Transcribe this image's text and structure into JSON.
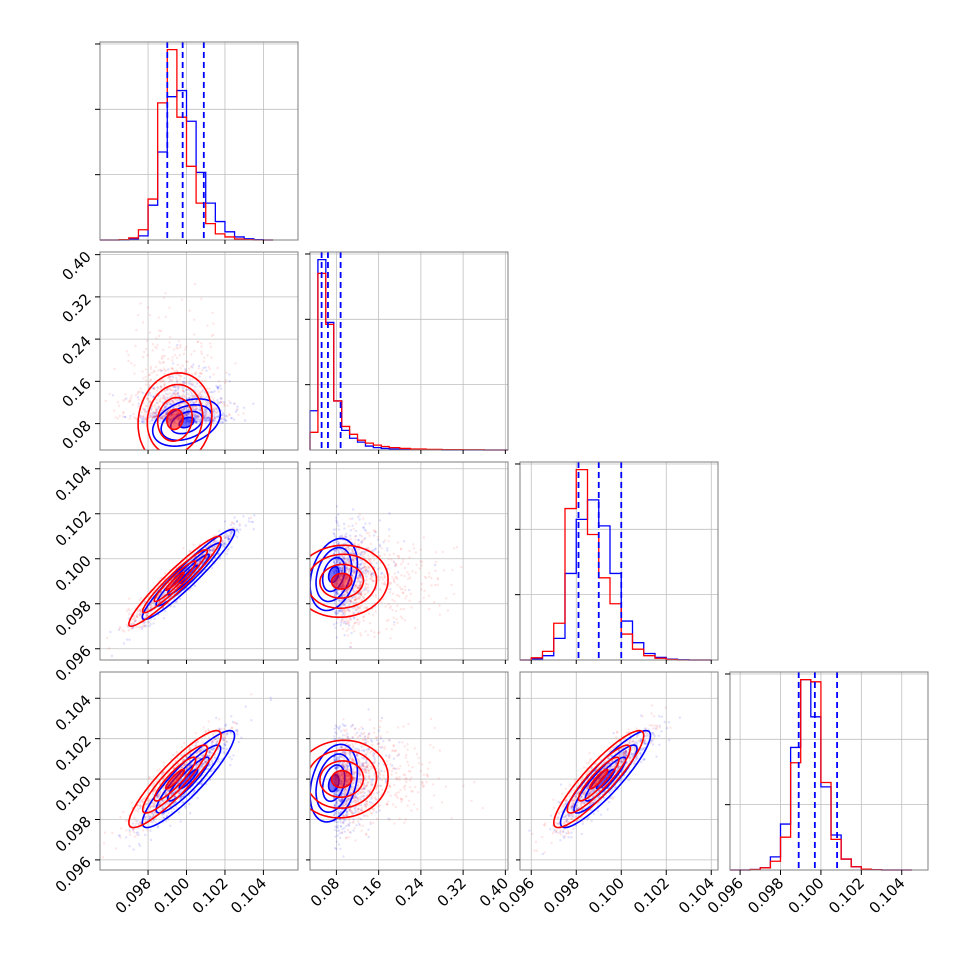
{
  "chart_data": {
    "type": "corner",
    "parameters": [
      "",
      "",
      "",
      ""
    ],
    "series": [
      {
        "name": "",
        "color": "#0000ff"
      },
      {
        "name": "",
        "color": "#ff0000"
      }
    ],
    "quantile_line_color": "#0000ff",
    "grid": true,
    "ranges": [
      [
        0.0955,
        0.1058
      ],
      [
        0.03,
        0.405
      ],
      [
        0.0955,
        0.1043
      ],
      [
        0.0955,
        0.1053
      ]
    ],
    "ticks": [
      {
        "values": [
          0.098,
          0.1,
          0.102,
          0.104
        ],
        "labels": [
          "0.098",
          "0.100",
          "0.102",
          "0.104"
        ]
      },
      {
        "values": [
          0.08,
          0.16,
          0.24,
          0.32,
          0.4
        ],
        "labels": [
          "0.08",
          "0.16",
          "0.24",
          "0.32",
          "0.40"
        ]
      },
      {
        "values": [
          0.096,
          0.098,
          0.1,
          0.102,
          0.104
        ],
        "labels": [
          "0.096",
          "0.098",
          "0.100",
          "0.102",
          "0.104"
        ]
      },
      {
        "values": [
          0.096,
          0.098,
          0.1,
          0.102,
          0.104
        ],
        "labels": [
          "0.096",
          "0.098",
          "0.100",
          "0.102",
          "0.104"
        ]
      }
    ],
    "quantiles": [
      [
        0.099,
        0.0998,
        0.1009
      ],
      [
        0.052,
        0.064,
        0.088
      ],
      [
        0.0981,
        0.099,
        0.1
      ],
      [
        0.0989,
        0.0997,
        0.1008
      ]
    ],
    "histograms": [
      {
        "bin_edges": [
          0.0955,
          0.096,
          0.0965,
          0.097,
          0.0975,
          0.098,
          0.0985,
          0.099,
          0.0995,
          0.1,
          0.1005,
          0.101,
          0.1015,
          0.102,
          0.1025,
          0.103,
          0.1035,
          0.104,
          0.1045
        ],
        "blue": [
          0,
          0,
          0,
          0.005,
          0.02,
          0.17,
          0.43,
          0.7,
          0.73,
          0.58,
          0.33,
          0.18,
          0.09,
          0.04,
          0.015,
          0.006,
          0.002,
          0
        ],
        "red": [
          0,
          0,
          0.002,
          0.01,
          0.05,
          0.2,
          0.67,
          0.93,
          0.6,
          0.36,
          0.18,
          0.08,
          0.03,
          0.015,
          0.005,
          0.002,
          0,
          0
        ]
      },
      {
        "bin_edges": [
          0.03,
          0.045,
          0.06,
          0.075,
          0.09,
          0.105,
          0.12,
          0.135,
          0.15,
          0.165,
          0.18,
          0.2,
          0.22,
          0.25,
          0.28,
          0.32,
          0.36,
          0.405
        ],
        "blue": [
          0.2,
          0.97,
          0.65,
          0.25,
          0.1,
          0.06,
          0.04,
          0.02,
          0.012,
          0.008,
          0.005,
          0.003,
          0.002,
          0.001,
          0,
          0,
          0
        ],
        "red": [
          0.09,
          0.9,
          0.64,
          0.25,
          0.12,
          0.08,
          0.05,
          0.035,
          0.025,
          0.018,
          0.012,
          0.008,
          0.005,
          0.003,
          0.002,
          0.001,
          0
        ]
      },
      {
        "bin_edges": [
          0.0955,
          0.096,
          0.0965,
          0.097,
          0.0975,
          0.098,
          0.0985,
          0.099,
          0.0995,
          0.1,
          0.1005,
          0.101,
          0.1015,
          0.102,
          0.1025,
          0.103,
          0.1035,
          0.104
        ],
        "blue": [
          0,
          0.005,
          0.02,
          0.1,
          0.4,
          0.65,
          0.74,
          0.62,
          0.4,
          0.18,
          0.08,
          0.03,
          0.012,
          0.004,
          0.001,
          0,
          0
        ],
        "red": [
          0,
          0.01,
          0.04,
          0.17,
          0.7,
          0.88,
          0.58,
          0.38,
          0.26,
          0.12,
          0.05,
          0.02,
          0.008,
          0.002,
          0,
          0,
          0
        ]
      },
      {
        "bin_edges": [
          0.0955,
          0.096,
          0.0965,
          0.097,
          0.0975,
          0.098,
          0.0985,
          0.099,
          0.0995,
          0.1,
          0.1005,
          0.101,
          0.1015,
          0.102,
          0.1025,
          0.103,
          0.1035,
          0.104,
          0.1045
        ],
        "blue": [
          0,
          0,
          0.002,
          0.01,
          0.06,
          0.21,
          0.56,
          0.87,
          0.7,
          0.38,
          0.16,
          0.05,
          0.015,
          0.004,
          0.001,
          0,
          0,
          0
        ],
        "red": [
          0,
          0,
          0.002,
          0.01,
          0.04,
          0.15,
          0.49,
          0.87,
          0.86,
          0.4,
          0.14,
          0.05,
          0.015,
          0.004,
          0.001,
          0,
          0,
          0
        ]
      }
    ],
    "scatter_panels": [
      {
        "row": 1,
        "col": 0,
        "blue": {
          "mean": [
            0.1,
            0.082
          ],
          "sd": [
            0.0011,
            0.028
          ],
          "corr": 0.35
        },
        "red": {
          "mean": [
            0.0994,
            0.088
          ],
          "sd": [
            0.0012,
            0.055
          ],
          "corr": 0.1
        }
      },
      {
        "row": 2,
        "col": 0,
        "blue": {
          "mean": [
            0.1001,
            0.0993
          ],
          "sd": [
            0.0012,
            0.001
          ],
          "corr": 0.95
        },
        "red": {
          "mean": [
            0.0994,
            0.099
          ],
          "sd": [
            0.0012,
            0.001
          ],
          "corr": 0.95
        }
      },
      {
        "row": 2,
        "col": 1,
        "blue": {
          "mean": [
            0.075,
            0.0993
          ],
          "sd": [
            0.028,
            0.001
          ],
          "corr": 0.3
        },
        "red": {
          "mean": [
            0.09,
            0.099
          ],
          "sd": [
            0.055,
            0.001
          ],
          "corr": 0.05
        }
      },
      {
        "row": 3,
        "col": 0,
        "blue": {
          "mean": [
            0.1001,
            0.1
          ],
          "sd": [
            0.0012,
            0.0012
          ],
          "corr": 0.9
        },
        "red": {
          "mean": [
            0.0994,
            0.1
          ],
          "sd": [
            0.0012,
            0.0012
          ],
          "corr": 0.9
        }
      },
      {
        "row": 3,
        "col": 1,
        "blue": {
          "mean": [
            0.075,
            0.0998
          ],
          "sd": [
            0.028,
            0.0012
          ],
          "corr": 0.3
        },
        "red": {
          "mean": [
            0.09,
            0.1
          ],
          "sd": [
            0.055,
            0.0012
          ],
          "corr": 0.05
        }
      },
      {
        "row": 3,
        "col": 2,
        "blue": {
          "mean": [
            0.0993,
            0.1
          ],
          "sd": [
            0.001,
            0.0012
          ],
          "corr": 0.9
        },
        "red": {
          "mean": [
            0.099,
            0.1
          ],
          "sd": [
            0.001,
            0.0012
          ],
          "corr": 0.9
        }
      }
    ]
  }
}
